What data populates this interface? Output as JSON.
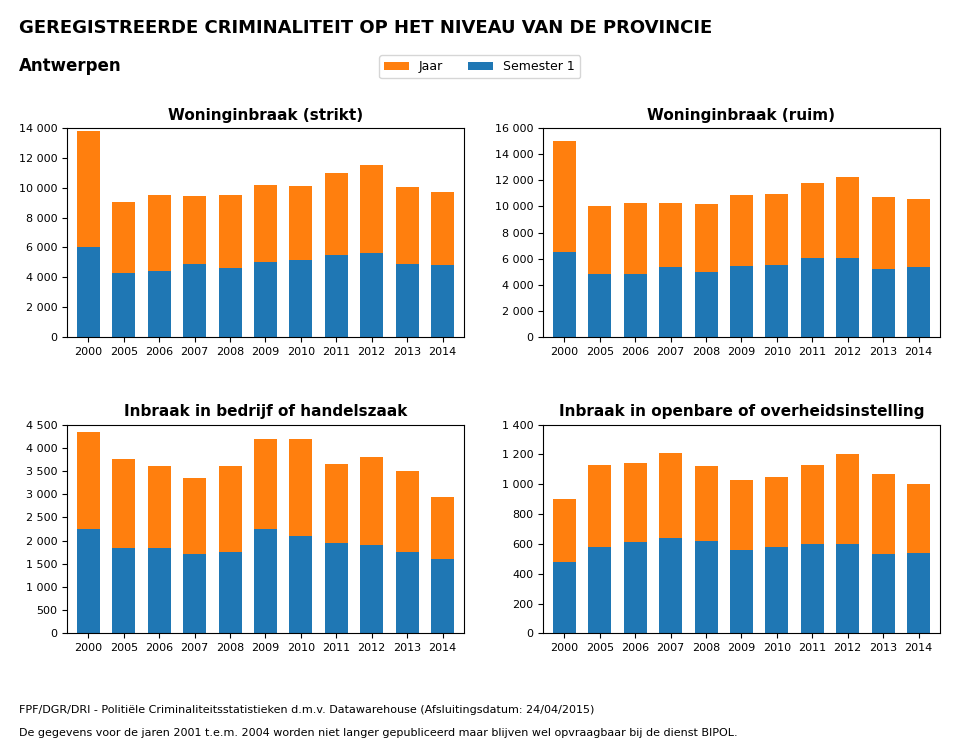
{
  "title": "GEREGISTREERDE CRIMINALITEIT OP HET NIVEAU VAN DE PROVINCIE",
  "subtitle": "Antwerpen",
  "legend": "upper center",
  "annotations": [
    "FPF/DGR/DRI - Politiële Criminaliteitsstatistieken d.m.v. Datawarehouse (Afsluitingsdatum: 24/04/2015)",
    "De gegevens voor de jaren 2001 t.e.m. 2004 worden niet langer gepubliceerd maar blijven wel opvraagbaar bij de dienst BIPOL."
  ],
  "chart_data": [
    {
      "type": "bar",
      "title": "Woninginbraak (strikt)",
      "stacked": true,
      "grid": false,
      "categories": [
        "2000",
        "2005",
        "2006",
        "2007",
        "2008",
        "2009",
        "2010",
        "2011",
        "2012",
        "2013",
        "2014"
      ],
      "series": [
        {
          "name": "Semester 1",
          "values": [
            6000,
            4300,
            4450,
            4900,
            4600,
            5050,
            5150,
            5500,
            5600,
            4900,
            4800
          ]
        },
        {
          "name": "Jaar",
          "values": [
            7800,
            4750,
            5050,
            4550,
            4950,
            5150,
            5000,
            5500,
            5900,
            5150,
            4900
          ]
        }
      ],
      "ylim": [
        0,
        14000
      ],
      "yticks": [
        0,
        {
          "value": 2000,
          "label": "2 000"
        },
        {
          "value": 4000,
          "label": "4 000"
        },
        {
          "value": 6000,
          "label": "6 000"
        },
        {
          "value": 8000,
          "label": "8 000"
        },
        {
          "value": 10000,
          "label": "10 000"
        },
        {
          "value": 12000,
          "label": "12 000"
        },
        {
          "value": 14000,
          "label": "14 000"
        }
      ]
    },
    {
      "type": "bar",
      "title": "Woninginbraak (ruim)",
      "stacked": true,
      "grid": false,
      "categories": [
        "2000",
        "2005",
        "2006",
        "2007",
        "2008",
        "2009",
        "2010",
        "2011",
        "2012",
        "2013",
        "2014"
      ],
      "series": [
        {
          "name": "Semester 1",
          "values": [
            6500,
            4800,
            4800,
            5350,
            4950,
            5450,
            5550,
            6050,
            6050,
            5200,
            5350
          ]
        },
        {
          "name": "Jaar",
          "values": [
            8500,
            5250,
            5500,
            4950,
            5250,
            5450,
            5400,
            5750,
            6200,
            5500,
            5250
          ]
        }
      ],
      "ylim": [
        0,
        16000
      ],
      "yticks": [
        0,
        {
          "value": 2000,
          "label": "2 000"
        },
        {
          "value": 4000,
          "label": "4 000"
        },
        {
          "value": 6000,
          "label": "6 000"
        },
        {
          "value": 8000,
          "label": "8 000"
        },
        {
          "value": 10000,
          "label": "10 000"
        },
        {
          "value": 12000,
          "label": "12 000"
        },
        {
          "value": 14000,
          "label": "14 000"
        },
        {
          "value": 16000,
          "label": "16 000"
        }
      ]
    },
    {
      "type": "bar",
      "title": "Inbraak in bedrijf of handelszaak",
      "stacked": true,
      "grid": false,
      "categories": [
        "2000",
        "2005",
        "2006",
        "2007",
        "2008",
        "2009",
        "2010",
        "2011",
        "2012",
        "2013",
        "2014"
      ],
      "series": [
        {
          "name": "Semester 1",
          "values": [
            2250,
            1850,
            1850,
            1700,
            1750,
            2250,
            2100,
            1950,
            1900,
            1750,
            1600
          ]
        },
        {
          "name": "Jaar",
          "values": [
            2100,
            1900,
            1750,
            1650,
            1850,
            1950,
            2100,
            1700,
            1900,
            1750,
            1350
          ]
        }
      ],
      "ylim": [
        0,
        4500
      ],
      "yticks": [
        0,
        500,
        {
          "value": 1000,
          "label": "1 000"
        },
        {
          "value": 1500,
          "label": "1 500"
        },
        {
          "value": 2000,
          "label": "2 000"
        },
        {
          "value": 2500,
          "label": "2 500"
        },
        {
          "value": 3000,
          "label": "3 000"
        },
        {
          "value": 3500,
          "label": "3 500"
        },
        {
          "value": 4000,
          "label": "4 000"
        },
        {
          "value": 4500,
          "label": "4 500"
        }
      ]
    },
    {
      "type": "bar",
      "title": "Inbraak in openbare of overheidsinstelling",
      "stacked": true,
      "grid": false,
      "categories": [
        "2000",
        "2005",
        "2006",
        "2007",
        "2008",
        "2009",
        "2010",
        "2011",
        "2012",
        "2013",
        "2014"
      ],
      "series": [
        {
          "name": "Semester 1",
          "values": [
            480,
            580,
            610,
            640,
            620,
            560,
            580,
            600,
            600,
            530,
            540
          ]
        },
        {
          "name": "Jaar",
          "values": [
            420,
            550,
            530,
            570,
            500,
            470,
            470,
            530,
            600,
            540,
            460
          ]
        }
      ],
      "ylim": [
        0,
        1400
      ],
      "yticks": [
        0,
        200,
        400,
        600,
        800,
        {
          "value": 1000,
          "label": "1 000"
        },
        {
          "value": 1200,
          "label": "1 200"
        },
        {
          "value": 1400,
          "label": "1 400"
        }
      ]
    }
  ]
}
